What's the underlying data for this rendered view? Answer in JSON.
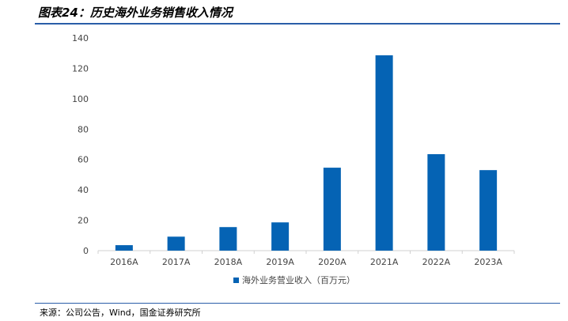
{
  "header": {
    "title": "图表24：历史海外业务销售收入情况"
  },
  "footer": {
    "source": "来源：公司公告，Wind，国金证券研究所"
  },
  "chart_data": {
    "type": "bar",
    "title": "",
    "categories": [
      "2016A",
      "2017A",
      "2018A",
      "2019A",
      "2020A",
      "2021A",
      "2022A",
      "2023A"
    ],
    "series": [
      {
        "name": "海外业务营业收入（百万元）",
        "values": [
          3.6,
          9.2,
          15.5,
          18.6,
          54.6,
          128.6,
          63.5,
          53.0
        ],
        "color": "#0563b4"
      }
    ],
    "ylim": [
      0,
      140
    ],
    "yticks": [
      0,
      20,
      40,
      60,
      80,
      100,
      120,
      140
    ],
    "grid": false,
    "legend": "bottom"
  }
}
